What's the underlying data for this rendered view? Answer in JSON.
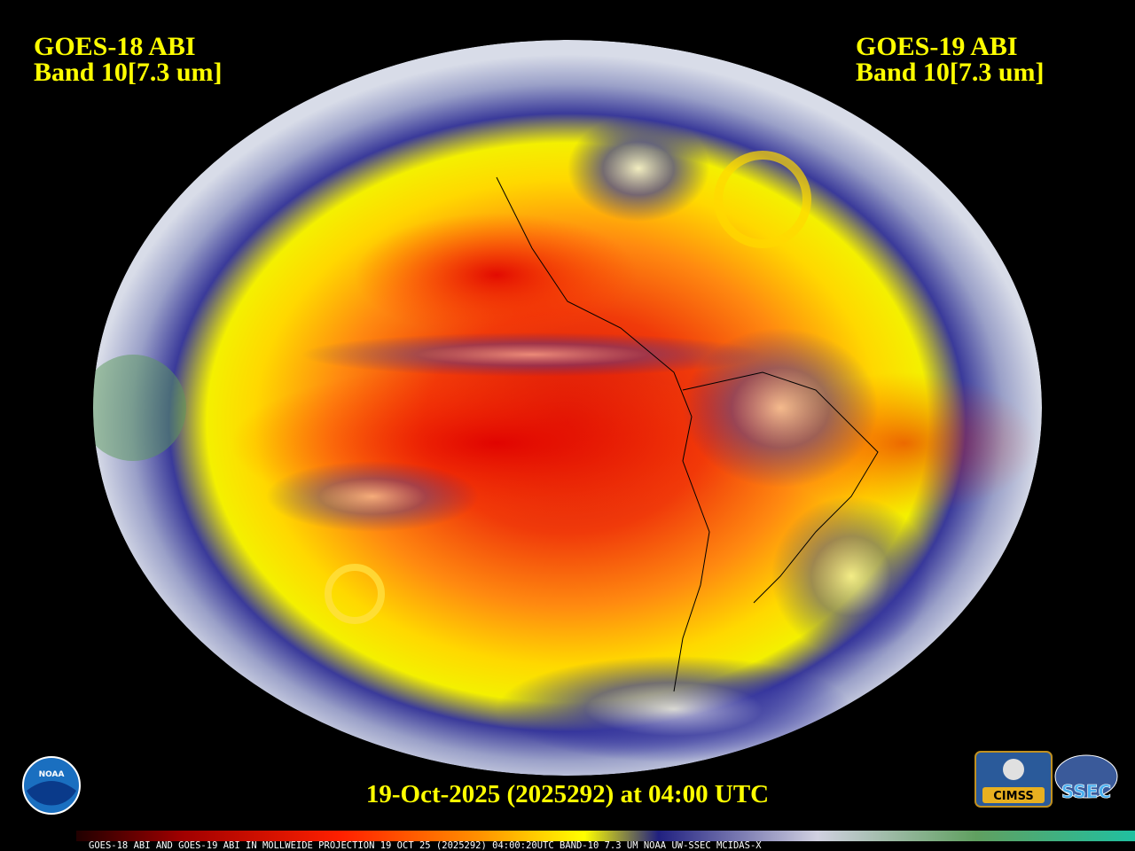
{
  "header": {
    "left": {
      "line1": "GOES-18 ABI",
      "line2": "Band 10[7.3 um]"
    },
    "right": {
      "line1": "GOES-19 ABI",
      "line2": "Band 10[7.3 um]"
    }
  },
  "timestamp": "19-Oct-2025 (2025292) at 04:00 UTC",
  "footer": "GOES-18 ABI AND GOES-19 ABI IN MOLLWEIDE PROJECTION 19 OCT 25 (2025292) 04:00:20UTC BAND-10 7.3 UM NOAA UW-SSEC MCIDAS-X",
  "logos": {
    "noaa": "NOAA",
    "cimss": "CIMSS",
    "ssec": "SSEC"
  }
}
